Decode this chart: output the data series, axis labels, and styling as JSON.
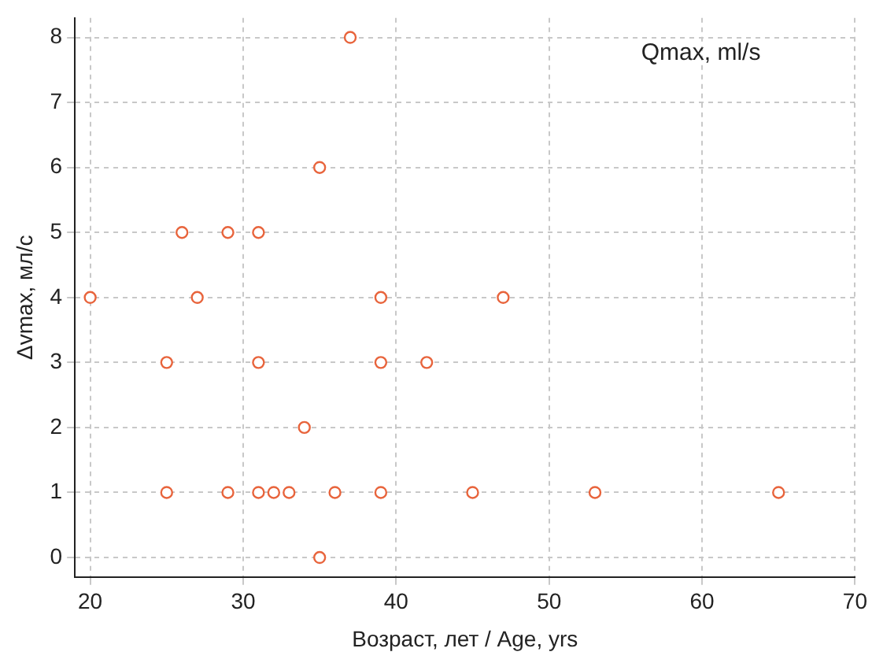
{
  "chart_data": {
    "type": "scatter",
    "xlabel": "Возраст, лет / Age, yrs",
    "ylabel": "Δvmax, мл/с",
    "annotations": [
      "Qmax, ml/s"
    ],
    "x": [
      37,
      35,
      26,
      29,
      31,
      20,
      27,
      39,
      47,
      25,
      31,
      39,
      42,
      34,
      25,
      29,
      31,
      32,
      33,
      36,
      39,
      45,
      53,
      65,
      35
    ],
    "series": [
      {
        "color": "#e8643c",
        "values": [
          8,
          6,
          5,
          5,
          5,
          4,
          4,
          4,
          4,
          3,
          3,
          3,
          3,
          2,
          1,
          1,
          1,
          1,
          1,
          1,
          1,
          1,
          1,
          1,
          0
        ]
      }
    ],
    "xlim": [
      19,
      70
    ],
    "xticks": [
      20,
      30,
      40,
      50,
      60,
      70
    ],
    "ylim": [
      -0.3,
      8.3
    ],
    "yticks": [
      0,
      1,
      2,
      3,
      4,
      5,
      6,
      7,
      8
    ],
    "grid": true,
    "marker": "circle",
    "legend": false
  }
}
